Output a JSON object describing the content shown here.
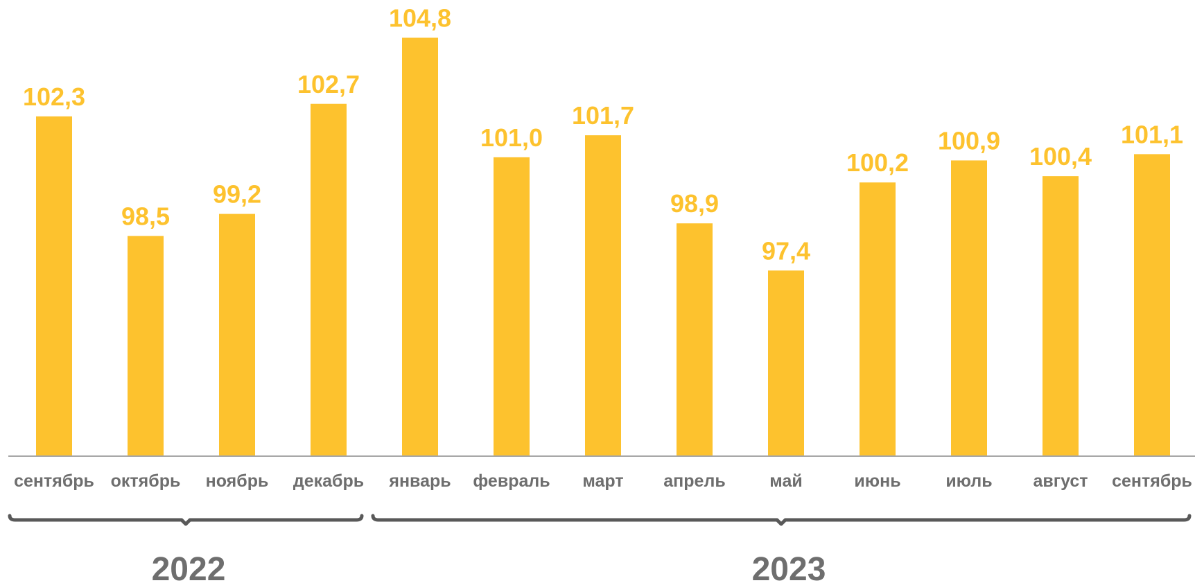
{
  "chart_data": {
    "type": "bar",
    "title": "",
    "xlabel": "",
    "ylabel": "",
    "categories": [
      "сентябрь",
      "октябрь",
      "ноябрь",
      "декабрь",
      "январь",
      "февраль",
      "март",
      "апрель",
      "май",
      "июнь",
      "июль",
      "август",
      "сентябрь"
    ],
    "values": [
      102.3,
      98.5,
      99.2,
      102.7,
      104.8,
      101.0,
      101.7,
      98.9,
      97.4,
      100.2,
      100.9,
      100.4,
      101.1
    ],
    "value_labels": [
      "102,3",
      "98,5",
      "99,2",
      "102,7",
      "104,8",
      "101,0",
      "101,7",
      "98,9",
      "97,4",
      "100,2",
      "100,9",
      "100,4",
      "101,1"
    ],
    "groups": [
      {
        "label": "2022",
        "categories": [
          "сентябрь",
          "октябрь",
          "ноябрь",
          "декабрь"
        ]
      },
      {
        "label": "2023",
        "categories": [
          "январь",
          "февраль",
          "март",
          "апрель",
          "май",
          "июнь",
          "июль",
          "август",
          "сентябрь"
        ]
      }
    ],
    "ylim": [
      91.5,
      106
    ],
    "grid": false,
    "legend": "none",
    "colors": {
      "bar": "#FDC22E",
      "value_label": "#FDC22E",
      "category_label": "#6E6E6E",
      "axis": "#A6A6A6",
      "bracket": "#595959",
      "year_label": "#6E6E6E"
    }
  }
}
